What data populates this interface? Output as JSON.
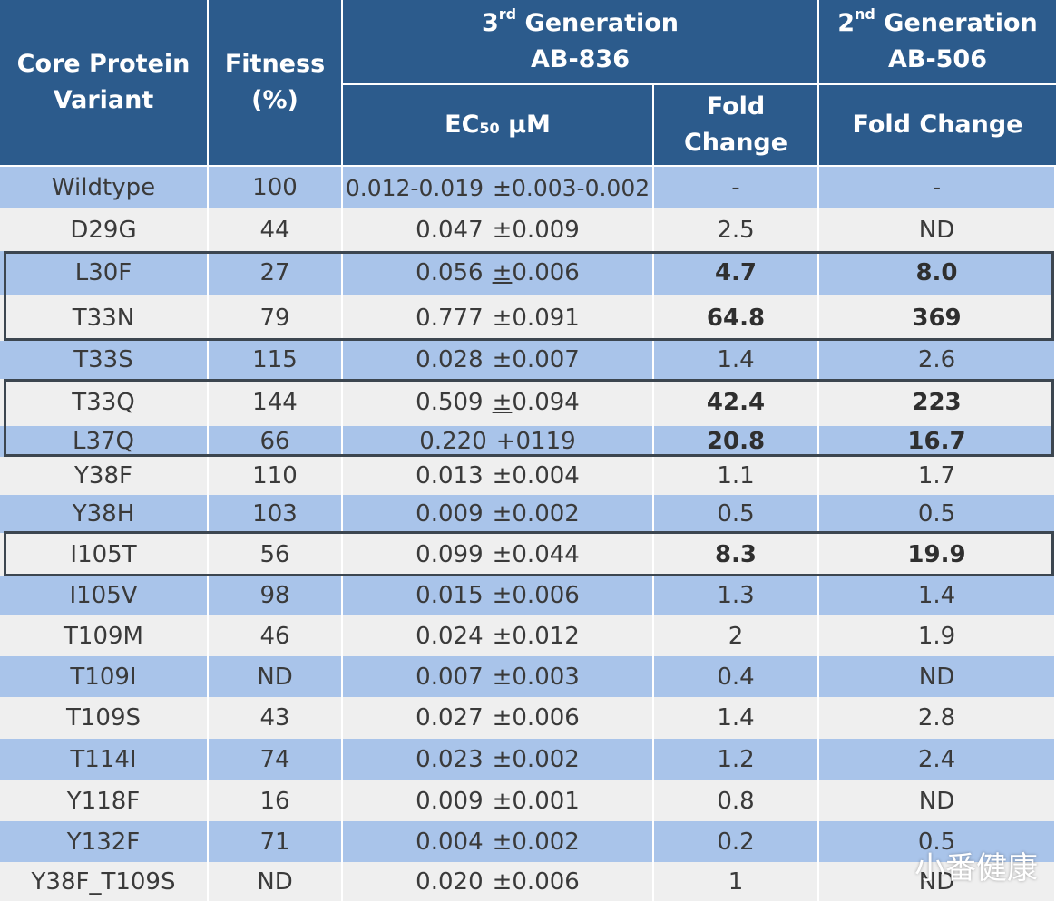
{
  "header": {
    "variant": [
      "Core Protein",
      "Variant"
    ],
    "fitness": [
      "Fitness",
      "(%)"
    ],
    "gen3": {
      "ordinal_num": "3",
      "ordinal_sup": "rd",
      "word": "Generation",
      "compound": "AB-836"
    },
    "gen2": {
      "ordinal_num": "2",
      "ordinal_sup": "nd",
      "word": "Generation",
      "compound": "AB-506"
    },
    "ec50": {
      "prefix": "EC",
      "sub": "50",
      "unit": "µM"
    },
    "fold_change_gen3": [
      "Fold",
      "Change"
    ],
    "fold_change_gen2": "Fold Change"
  },
  "rows": [
    {
      "variant": "Wildtype",
      "fitness": "100",
      "ec50": "0.012-0.019",
      "err": "±0.003-0.002",
      "fold3": "-",
      "fold2": "-",
      "bold": false
    },
    {
      "variant": "D29G",
      "fitness": "44",
      "ec50": "0.047",
      "err": "±0.009",
      "fold3": "2.5",
      "fold2": "ND",
      "bold": false
    },
    {
      "variant": "L30F",
      "fitness": "27",
      "ec50": "0.056",
      "err": "±0.006",
      "err_underline": true,
      "fold3": "4.7",
      "fold2": "8.0",
      "bold": true
    },
    {
      "variant": "T33N",
      "fitness": "79",
      "ec50": "0.777",
      "err": "±0.091",
      "fold3": "64.8",
      "fold2": "369",
      "bold": true
    },
    {
      "variant": "T33S",
      "fitness": "115",
      "ec50": "0.028",
      "err": "±0.007",
      "fold3": "1.4",
      "fold2": "2.6",
      "bold": false
    },
    {
      "variant": "T33Q",
      "fitness": "144",
      "ec50": "0.509",
      "err": "±0.094",
      "err_underline": true,
      "fold3": "42.4",
      "fold2": "223",
      "bold": true
    },
    {
      "variant": "L37Q",
      "fitness": "66",
      "ec50": "0.220",
      "err": "+0119",
      "fold3": "20.8",
      "fold2": "16.7",
      "bold": true
    },
    {
      "variant": "Y38F",
      "fitness": "110",
      "ec50": "0.013",
      "err": "±0.004",
      "fold3": "1.1",
      "fold2": "1.7",
      "bold": false
    },
    {
      "variant": "Y38H",
      "fitness": "103",
      "ec50": "0.009",
      "err": "±0.002",
      "fold3": "0.5",
      "fold2": "0.5",
      "bold": false
    },
    {
      "variant": "I105T",
      "fitness": "56",
      "ec50": "0.099",
      "err": "±0.044",
      "fold3": "8.3",
      "fold2": "19.9",
      "bold": true
    },
    {
      "variant": "I105V",
      "fitness": "98",
      "ec50": "0.015",
      "err": "±0.006",
      "fold3": "1.3",
      "fold2": "1.4",
      "bold": false
    },
    {
      "variant": "T109M",
      "fitness": "46",
      "ec50": "0.024",
      "err": "±0.012",
      "fold3": "2",
      "fold2": "1.9",
      "bold": false
    },
    {
      "variant": "T109I",
      "fitness": "ND",
      "ec50": "0.007",
      "err": "±0.003",
      "fold3": "0.4",
      "fold2": "ND",
      "bold": false
    },
    {
      "variant": "T109S",
      "fitness": "43",
      "ec50": "0.027",
      "err": "±0.006",
      "fold3": "1.4",
      "fold2": "2.8",
      "bold": false
    },
    {
      "variant": "T114I",
      "fitness": "74",
      "ec50": "0.023",
      "err": "±0.002",
      "fold3": "1.2",
      "fold2": "2.4",
      "bold": false
    },
    {
      "variant": "Y118F",
      "fitness": "16",
      "ec50": "0.009",
      "err": "±0.001",
      "fold3": "0.8",
      "fold2": "ND",
      "bold": false
    },
    {
      "variant": "Y132F",
      "fitness": "71",
      "ec50": "0.004",
      "err": "±0.002",
      "fold3": "0.2",
      "fold2": "0.5",
      "bold": false
    },
    {
      "variant": "Y38F_T109S",
      "fitness": "ND",
      "ec50": "0.020",
      "err": "±0.006",
      "fold3": "1",
      "fold2": "ND",
      "bold": false
    }
  ],
  "highlight_groups": [
    [
      "L30F",
      "T33N"
    ],
    [
      "T33Q",
      "L37Q"
    ],
    [
      "I105T"
    ]
  ],
  "colors": {
    "header_bg": "#2c5b8c",
    "row_blue": "#a9c4ea",
    "row_gray": "#efefef",
    "box_border": "#3c4650"
  },
  "watermark": "小番健康"
}
